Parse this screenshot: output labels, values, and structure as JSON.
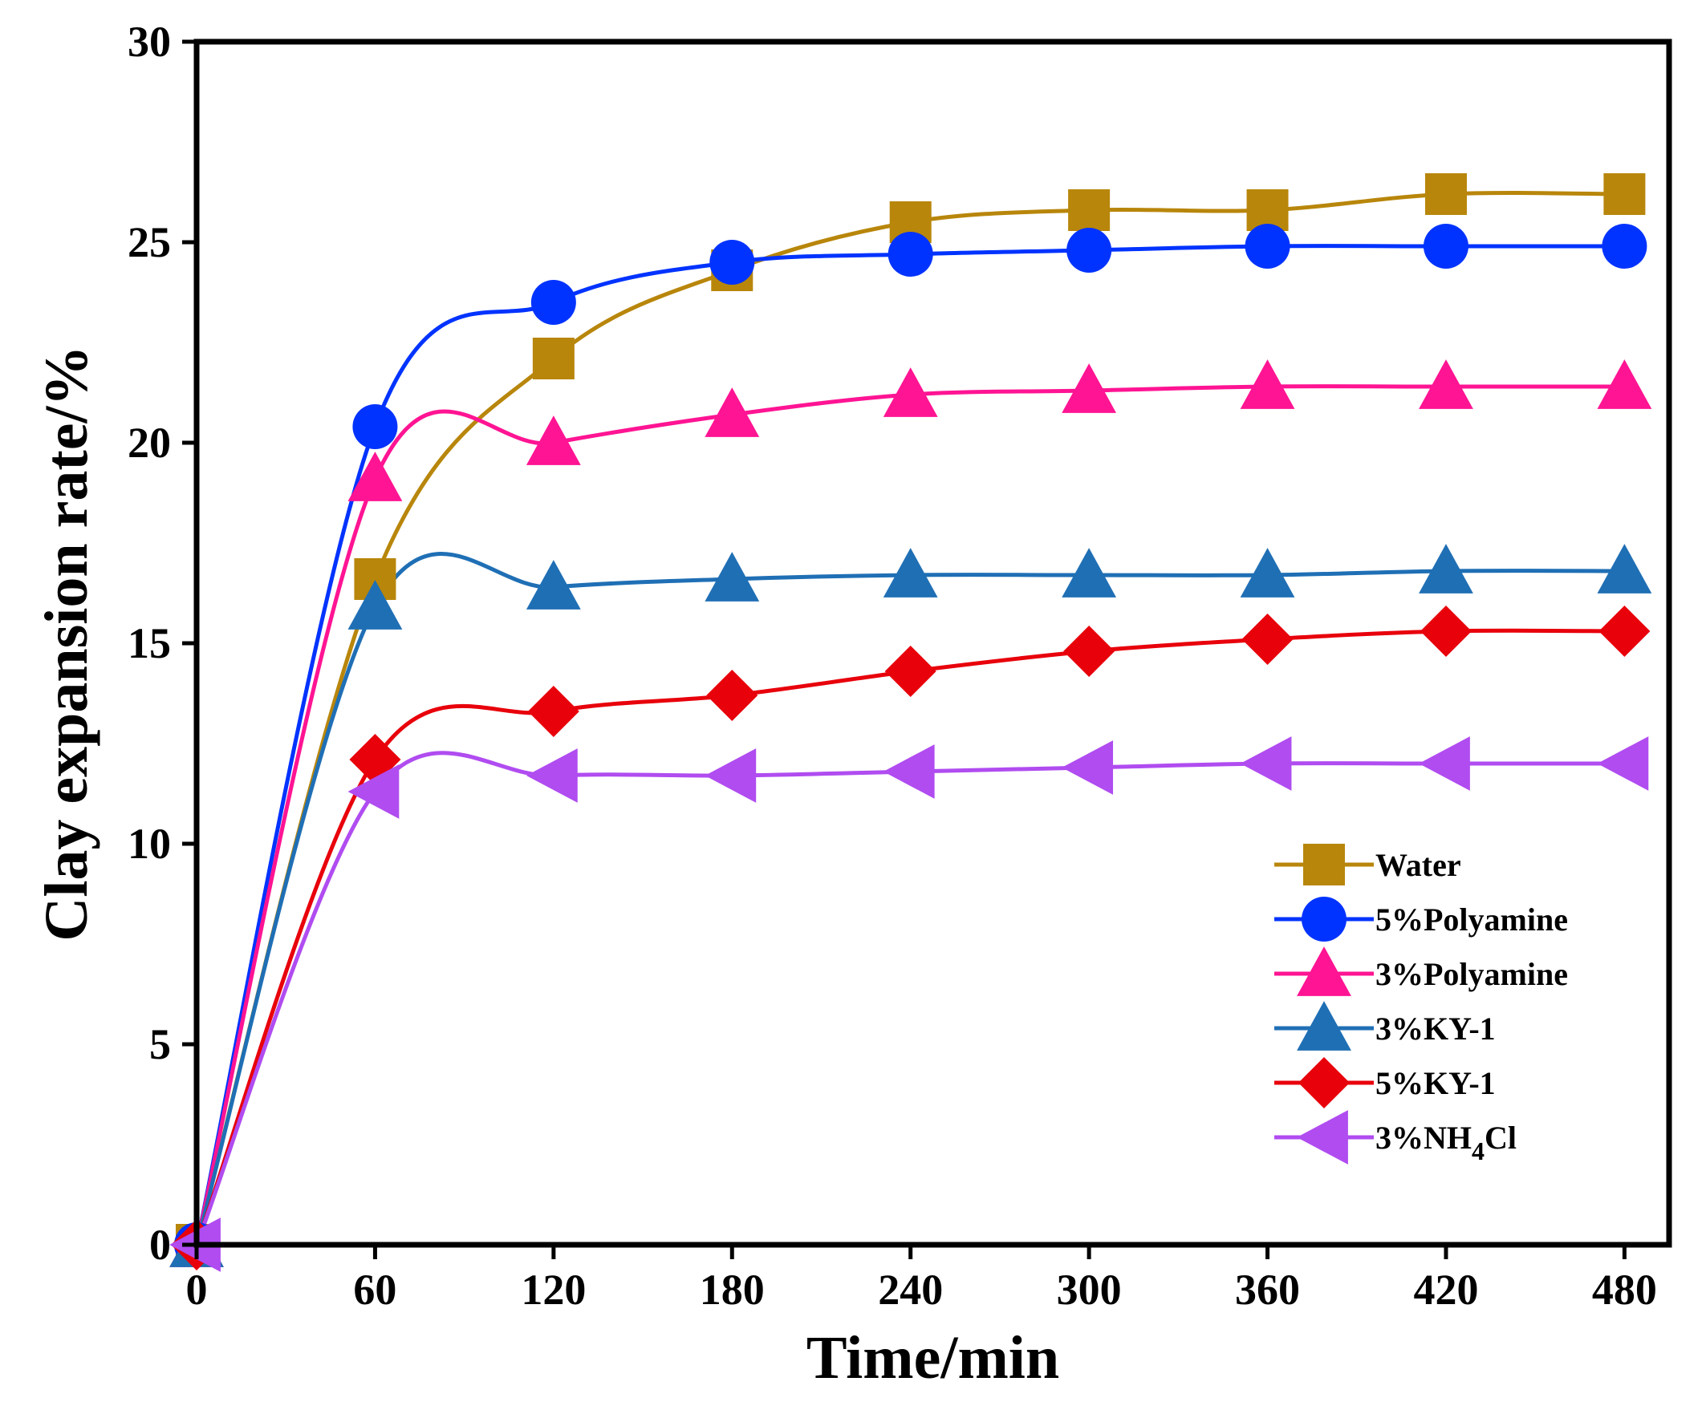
{
  "chart_data": {
    "type": "line",
    "title": "",
    "xlabel": "Time/min",
    "ylabel": "Clay expansion rate/%",
    "xlim": [
      0,
      495
    ],
    "ylim": [
      0,
      30
    ],
    "xticks": [
      0,
      60,
      120,
      180,
      240,
      300,
      360,
      420,
      480
    ],
    "xtick_labels": [
      "0",
      "60",
      "120",
      "180",
      "240",
      "300",
      "360",
      "420",
      "480"
    ],
    "yticks": [
      0,
      5,
      10,
      15,
      20,
      25,
      30
    ],
    "ytick_labels": [
      "0",
      "5",
      "10",
      "15",
      "20",
      "25",
      "30"
    ],
    "grid": false,
    "legend_position": "lower-right",
    "x": [
      0,
      60,
      120,
      180,
      240,
      300,
      360,
      420,
      480
    ],
    "series": [
      {
        "name": "Water",
        "legend_label": "Water",
        "marker": "square",
        "color": "#B8860B",
        "values": [
          0,
          16.6,
          22.1,
          24.3,
          25.5,
          25.8,
          25.8,
          26.2,
          26.2
        ]
      },
      {
        "name": "5%Polyamine",
        "legend_label": "5%Polyamine",
        "marker": "circle",
        "color": "#0033FF",
        "values": [
          0,
          20.4,
          23.5,
          24.5,
          24.7,
          24.8,
          24.9,
          24.9,
          24.9
        ]
      },
      {
        "name": "3%Polyamine",
        "legend_label": "3%Polyamine",
        "marker": "triangle-up",
        "color": "#FF1493",
        "values": [
          0,
          19.1,
          20.0,
          20.7,
          21.2,
          21.3,
          21.4,
          21.4,
          21.4
        ]
      },
      {
        "name": "3%KY-1",
        "legend_label": "3%KY-1",
        "marker": "triangle-up",
        "color": "#1F6FB5",
        "values": [
          0,
          15.9,
          16.4,
          16.6,
          16.7,
          16.7,
          16.7,
          16.8,
          16.8
        ]
      },
      {
        "name": "5%KY-1",
        "legend_label": "5%KY-1",
        "marker": "diamond",
        "color": "#E8000B",
        "values": [
          0,
          12.1,
          13.3,
          13.7,
          14.3,
          14.8,
          15.1,
          15.3,
          15.3
        ]
      },
      {
        "name": "3%NH4Cl",
        "legend_label": "3%NH",
        "legend_sub": "4",
        "legend_suffix": "Cl",
        "marker": "triangle-left",
        "color": "#B04CF0",
        "values": [
          0,
          11.3,
          11.7,
          11.7,
          11.8,
          11.9,
          12.0,
          12.0,
          12.0
        ]
      }
    ]
  }
}
